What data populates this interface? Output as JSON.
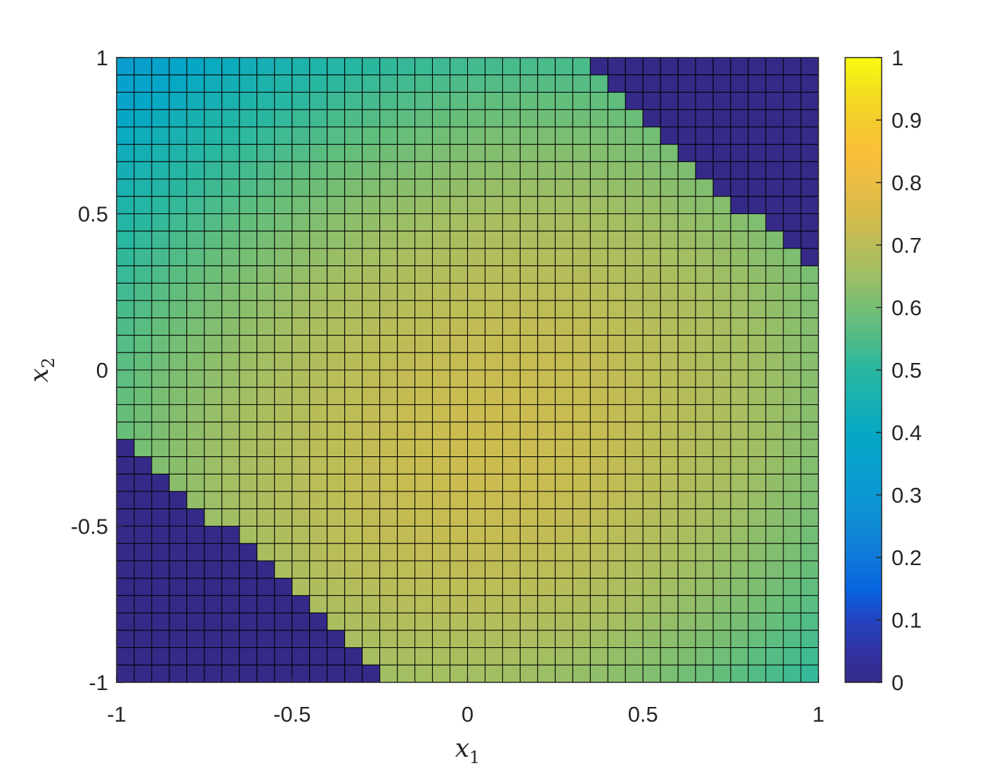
{
  "chart_data": {
    "type": "heatmap",
    "title": "",
    "xlabel": "x",
    "xlabel_sub": "1",
    "ylabel": "x",
    "ylabel_sub": "2",
    "xlim": [
      -1,
      1
    ],
    "ylim": [
      -1,
      1
    ],
    "grid_size": [
      40,
      36
    ],
    "x_ticks": [
      {
        "value": -1,
        "label": "-1"
      },
      {
        "value": -0.5,
        "label": "-0.5"
      },
      {
        "value": 0,
        "label": "0"
      },
      {
        "value": 0.5,
        "label": "0.5"
      },
      {
        "value": 1,
        "label": "1"
      }
    ],
    "y_ticks": [
      {
        "value": -1,
        "label": "-1"
      },
      {
        "value": -0.5,
        "label": "-0.5"
      },
      {
        "value": 0,
        "label": "0"
      },
      {
        "value": 0.5,
        "label": "0.5"
      },
      {
        "value": 1,
        "label": "1"
      }
    ],
    "colorbar": {
      "position": "right",
      "colormap": "parula",
      "range": [
        0,
        1
      ],
      "ticks": [
        {
          "value": 0,
          "label": "0"
        },
        {
          "value": 0.1,
          "label": "0.1"
        },
        {
          "value": 0.2,
          "label": "0.2"
        },
        {
          "value": 0.3,
          "label": "0.3"
        },
        {
          "value": 0.4,
          "label": "0.4"
        },
        {
          "value": 0.5,
          "label": "0.5"
        },
        {
          "value": 0.6,
          "label": "0.6"
        },
        {
          "value": 0.7,
          "label": "0.7"
        },
        {
          "value": 0.8,
          "label": "0.8"
        },
        {
          "value": 0.9,
          "label": "0.9"
        },
        {
          "value": 1,
          "label": "1"
        }
      ]
    },
    "cell_edge_color": "#000000",
    "value_function": "max(0, 0.73 - 0.35*((d-0.15)/1.06)^2 - 0.22*(s+0.08)^2), d=(x1-x2)/2, s=(x1+x2)/2; 0 where x1+x2 > 1.3 or x1+x2 < -1.2"
  }
}
